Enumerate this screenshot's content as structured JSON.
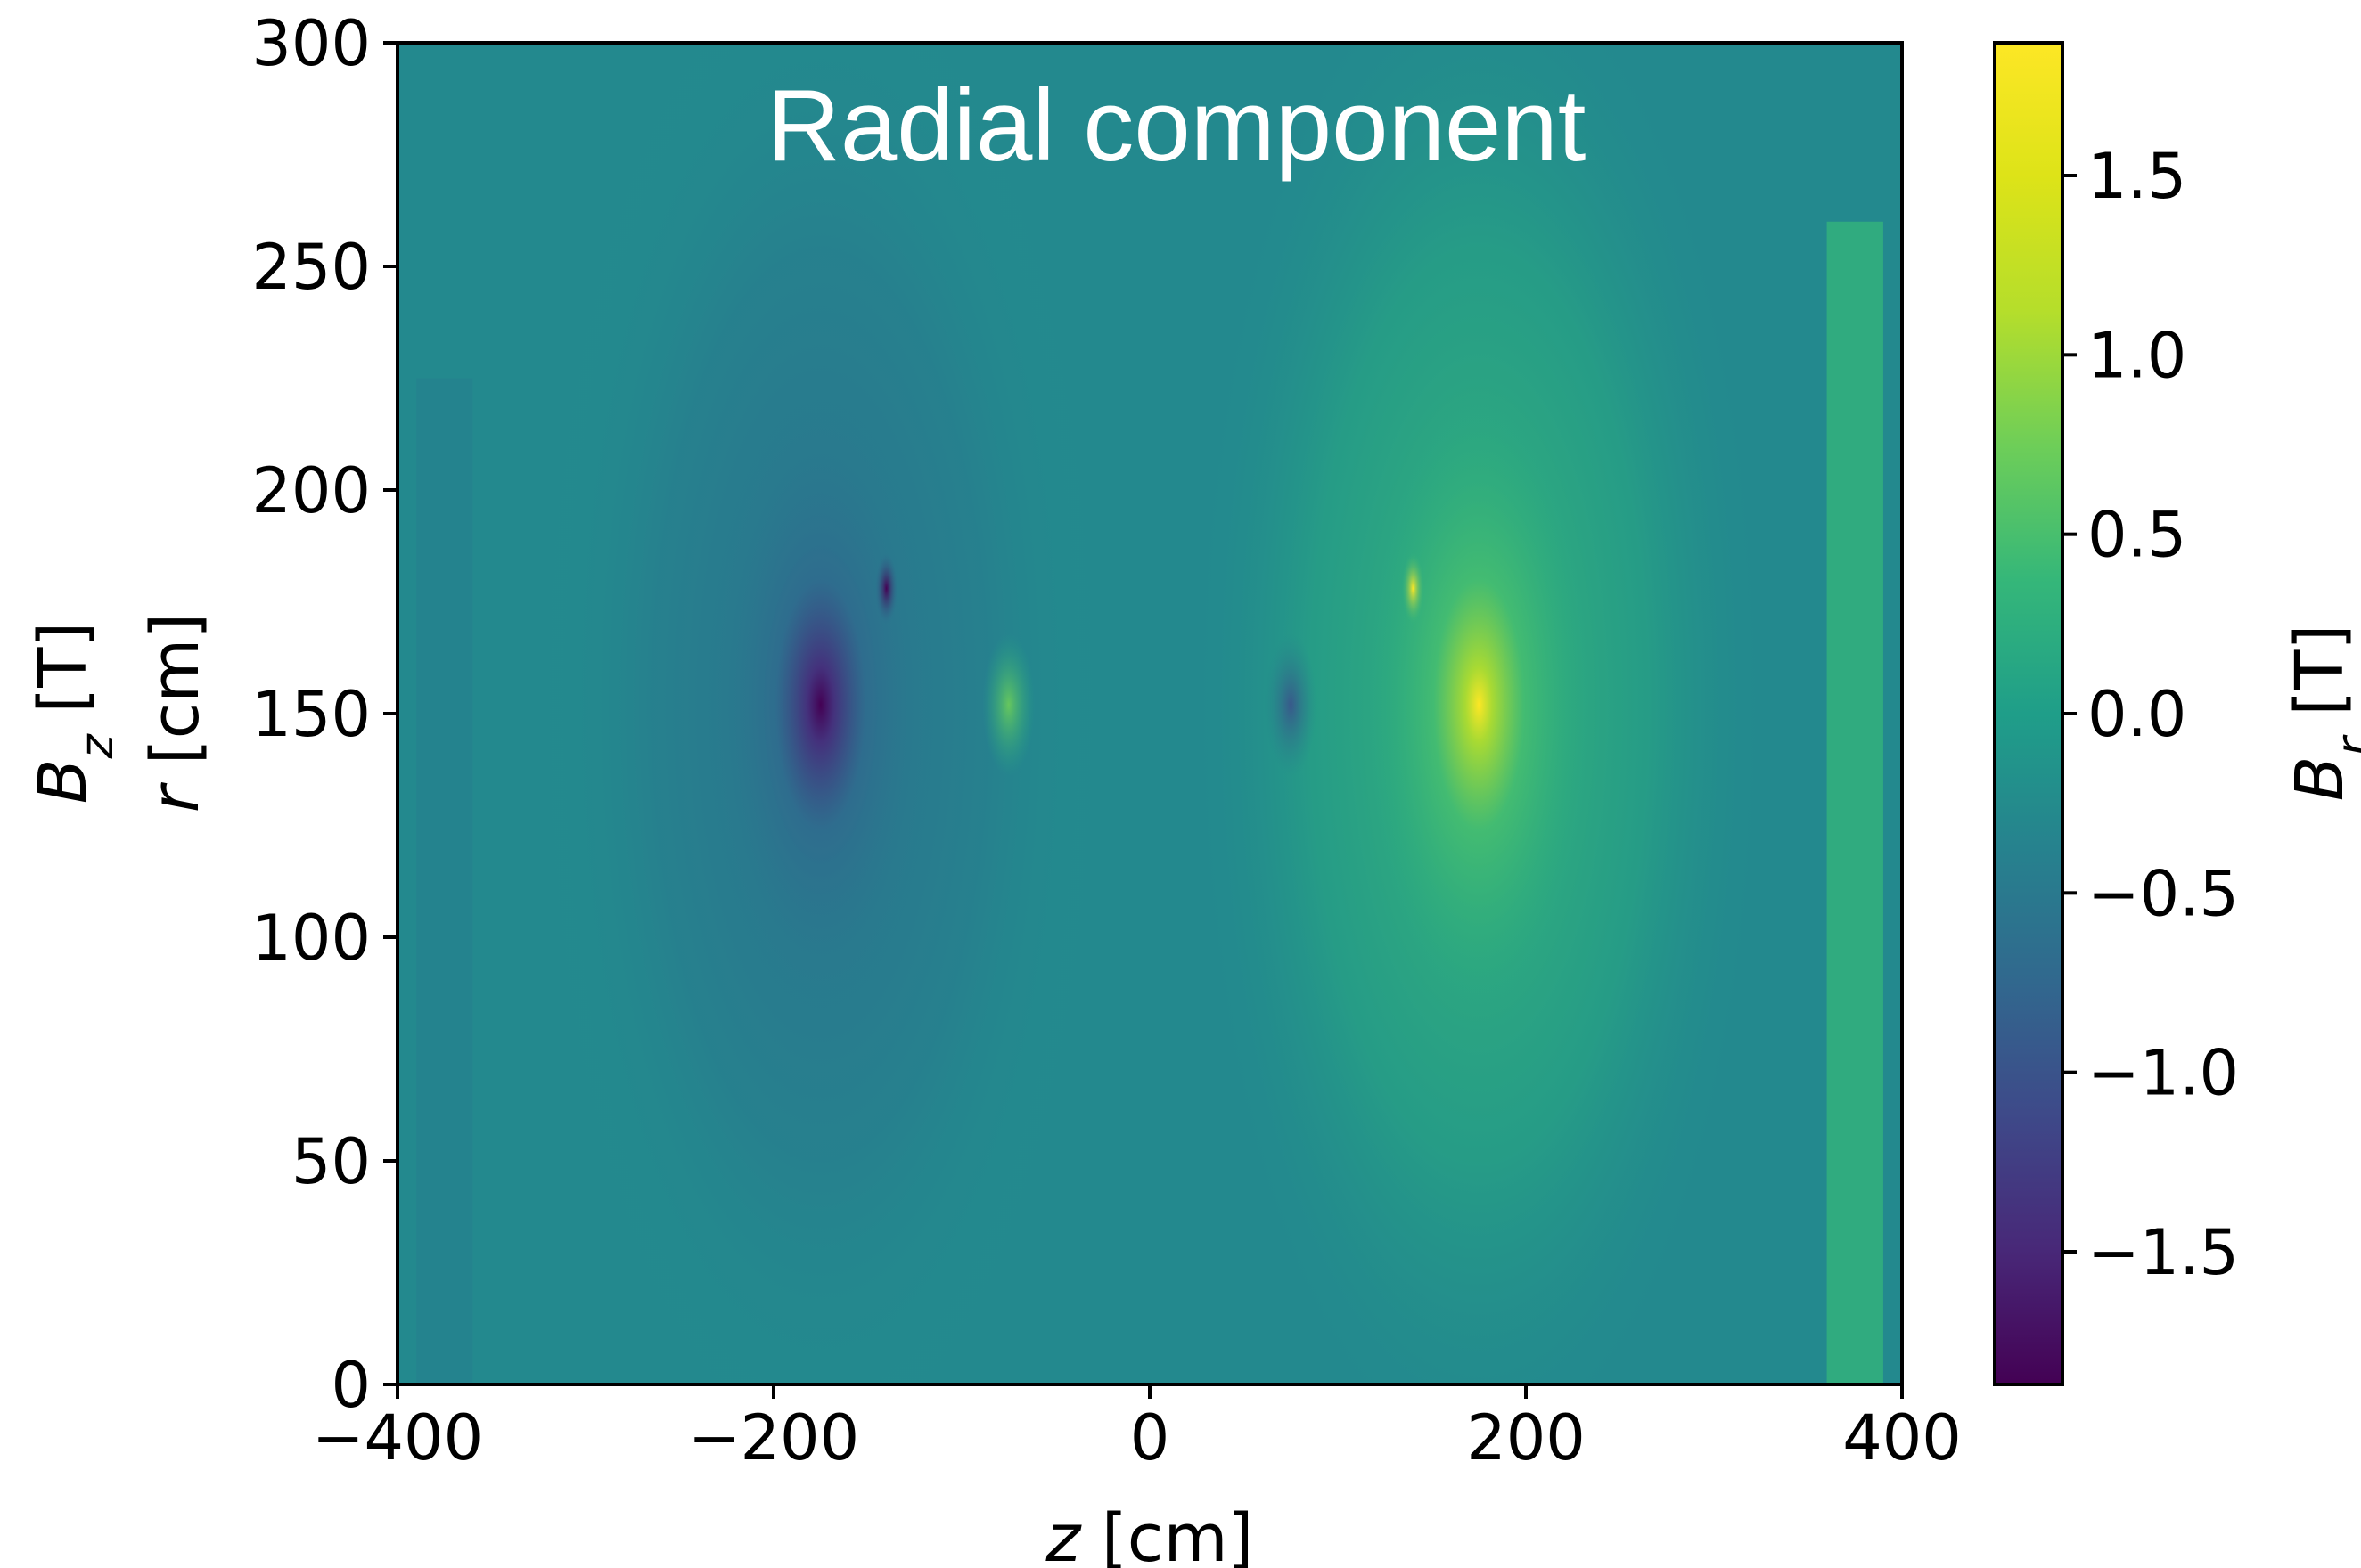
{
  "chart_data": {
    "type": "heatmap",
    "title": "Radial component",
    "xlabel": {
      "symbol": "z",
      "unit": " [cm]"
    },
    "ylabel": {
      "symbol": "r",
      "unit": " [cm]"
    },
    "side_label": {
      "symbol": "B",
      "subscript": "z",
      "unit": " [T]"
    },
    "colorbar_label": {
      "symbol": "B",
      "subscript": "r",
      "unit": " [T]"
    },
    "xlim": [
      -400,
      400
    ],
    "ylim": [
      0,
      300
    ],
    "clim": [
      -1.87,
      1.87
    ],
    "colormap": "viridis",
    "x_ticks": [
      "−400",
      "−200",
      "0",
      "200",
      "400"
    ],
    "x_tick_values": [
      -400,
      -200,
      0,
      200,
      400
    ],
    "y_ticks": [
      "0",
      "50",
      "100",
      "150",
      "200",
      "250",
      "300"
    ],
    "y_tick_values": [
      0,
      50,
      100,
      150,
      200,
      250,
      300
    ],
    "colorbar_ticks": [
      "−1.5",
      "−1.0",
      "−0.5",
      "0.0",
      "0.5",
      "1.0",
      "1.5"
    ],
    "colorbar_tick_values": [
      -1.5,
      -1.0,
      -0.5,
      0.0,
      0.5,
      1.0,
      1.5
    ],
    "features": [
      {
        "name": "min-peak",
        "z": -175,
        "r": 152,
        "value": -1.85
      },
      {
        "name": "max-peak",
        "z": 175,
        "r": 152,
        "value": 1.85
      },
      {
        "name": "small-neg",
        "z": 75,
        "r": 152,
        "value": -0.5
      },
      {
        "name": "small-pos",
        "z": -75,
        "r": 152,
        "value": 0.5
      },
      {
        "name": "neg-spot",
        "z": -140,
        "r": 178,
        "value": -1.5
      },
      {
        "name": "pos-spot",
        "z": 140,
        "r": 178,
        "value": 1.5
      }
    ],
    "end_bands": [
      {
        "name": "left-band",
        "z_range": [
          -390,
          -360
        ],
        "r_range": [
          0,
          225
        ],
        "value": -0.55
      },
      {
        "name": "right-band",
        "z_range": [
          360,
          390
        ],
        "r_range": [
          0,
          260
        ],
        "value": 0.5
      }
    ]
  }
}
